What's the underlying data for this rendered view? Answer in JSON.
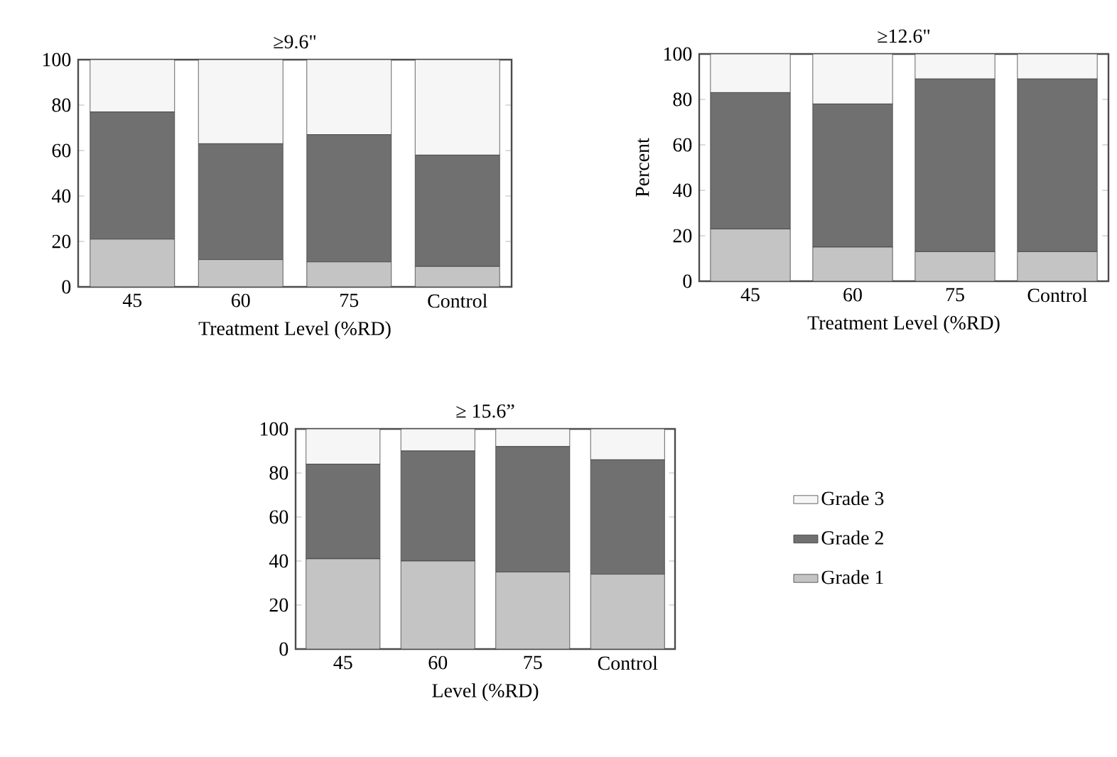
{
  "chart_data": [
    {
      "type": "bar",
      "title": "≥9.6\"",
      "xlabel": "Treatment Level (%RD)",
      "categories": [
        "45",
        "60",
        "75",
        "Control"
      ],
      "stacked": true,
      "ylim": [
        0,
        100
      ],
      "yticks": [
        0,
        20,
        40,
        60,
        80,
        100
      ],
      "series": [
        {
          "color": "#c4c4c4",
          "values": [
            21,
            12,
            11,
            9
          ]
        },
        {
          "color": "#707070",
          "values": [
            56,
            51,
            56,
            49
          ]
        },
        {
          "color": "#f6f6f6",
          "values": [
            23,
            37,
            33,
            42
          ]
        }
      ]
    },
    {
      "type": "bar",
      "title": "≥12.6\"",
      "xlabel": "Treatment Level (%RD)",
      "ylabel": "Percent",
      "categories": [
        "45",
        "60",
        "75",
        "Control"
      ],
      "stacked": true,
      "ylim": [
        0,
        100
      ],
      "yticks": [
        0,
        20,
        40,
        60,
        80,
        100
      ],
      "series": [
        {
          "color": "#c4c4c4",
          "values": [
            23,
            15,
            13,
            13
          ]
        },
        {
          "color": "#707070",
          "values": [
            60,
            63,
            76,
            76
          ]
        },
        {
          "color": "#f6f6f6",
          "values": [
            17,
            22,
            11,
            11
          ]
        }
      ]
    },
    {
      "type": "bar",
      "title": "≥ 15.6”",
      "xlabel": "Level (%RD)",
      "categories": [
        "45",
        "60",
        "75",
        "Control"
      ],
      "stacked": true,
      "ylim": [
        0,
        100
      ],
      "yticks": [
        0,
        20,
        40,
        60,
        80,
        100
      ],
      "legend": "right",
      "series": [
        {
          "name": "Grade 1",
          "color": "#c4c4c4",
          "values": [
            41,
            40,
            35,
            34
          ]
        },
        {
          "name": "Grade 2",
          "color": "#707070",
          "values": [
            43,
            50,
            57,
            52
          ]
        },
        {
          "name": "Grade 3",
          "color": "#f6f6f6",
          "values": [
            16,
            10,
            8,
            14
          ]
        }
      ]
    }
  ]
}
